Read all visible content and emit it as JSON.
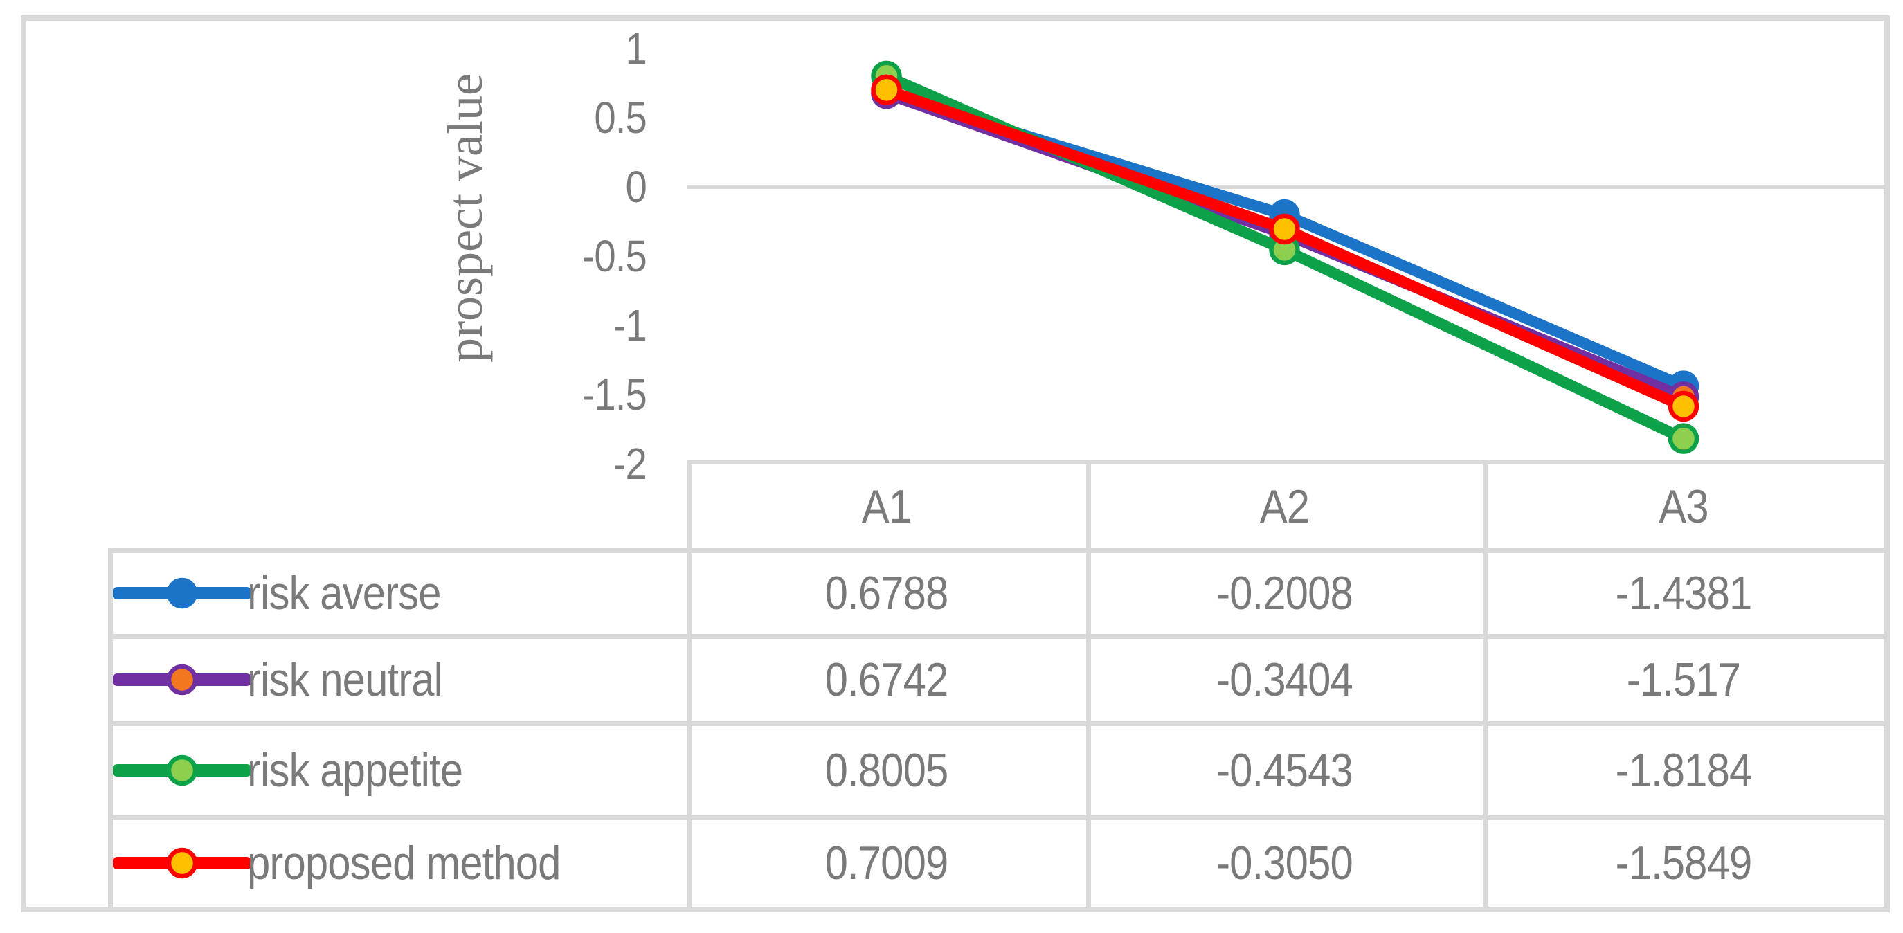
{
  "colors": {
    "background": "#FFFFFF",
    "border_gray": "#D9D9D9",
    "text_gray": "#7A7A7A"
  },
  "chart_data": {
    "type": "line",
    "title": "",
    "xlabel": "",
    "ylabel": "prospect value",
    "categories": [
      "A1",
      "A2",
      "A3"
    ],
    "series": [
      {
        "name": "risk averse",
        "values": [
          0.6788,
          -0.2008,
          -1.4381
        ],
        "display_values": [
          "0.6788",
          "-0.2008",
          "-1.4381"
        ],
        "line_color": "#1B74C8",
        "marker_fill": "#1B74C8"
      },
      {
        "name": "risk neutral",
        "values": [
          0.6742,
          -0.3404,
          -1.517
        ],
        "display_values": [
          "0.6742",
          "-0.3404",
          "-1.517"
        ],
        "line_color": "#7130A2",
        "marker_fill": "#F2771E"
      },
      {
        "name": "risk appetite",
        "values": [
          0.8005,
          -0.4543,
          -1.8184
        ],
        "display_values": [
          "0.8005",
          "-0.4543",
          "-1.8184"
        ],
        "line_color": "#0DA24A",
        "marker_fill": "#8DD04F"
      },
      {
        "name": "proposed method",
        "values": [
          0.7009,
          -0.305,
          -1.5849
        ],
        "display_values": [
          "0.7009",
          "-0.3050",
          "-1.5849"
        ],
        "line_color": "#FE0000",
        "marker_fill": "#FFC000"
      }
    ],
    "ylim": [
      -2,
      1
    ],
    "ytick_labels": [
      "1",
      "0.5",
      "0",
      "-0.5",
      "-1",
      "-1.5",
      "-2"
    ],
    "grid": false,
    "zero_axis_line": true,
    "legend_position": "data-table-first-column"
  }
}
